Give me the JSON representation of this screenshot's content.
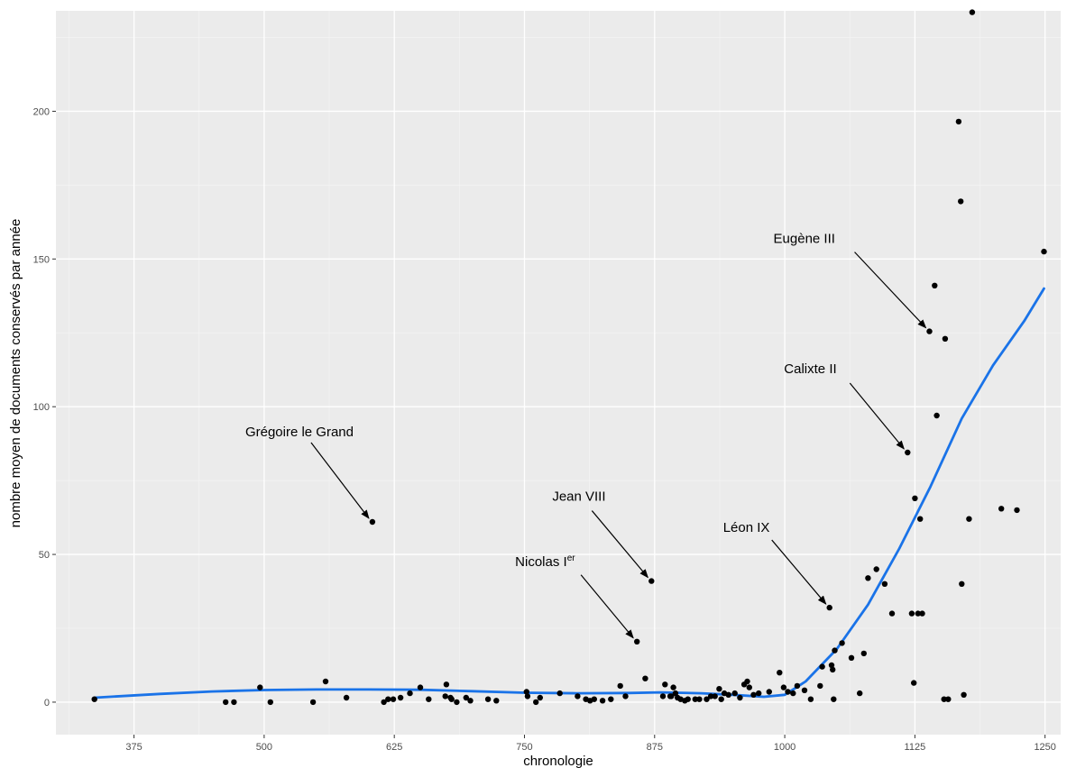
{
  "chart_data": {
    "type": "scatter",
    "title": "",
    "xlabel": "chronologie",
    "ylabel": "nombre moyen de documents conservés par année",
    "xlim": [
      300,
      1265
    ],
    "ylim": [
      -11,
      234
    ],
    "x_ticks": [
      375,
      500,
      625,
      750,
      875,
      1000,
      1125,
      1250
    ],
    "y_ticks": [
      0,
      50,
      100,
      150,
      200
    ],
    "grid": true,
    "legend": "none",
    "colors": {
      "panel": "#ebebeb",
      "grid": "#ffffff",
      "points": "#000000",
      "smooth": "#1a73e8"
    },
    "series": [
      {
        "type": "points",
        "points": [
          [
            337,
            1
          ],
          [
            463,
            0
          ],
          [
            471,
            0
          ],
          [
            496,
            5
          ],
          [
            506,
            0
          ],
          [
            547,
            0
          ],
          [
            559,
            7
          ],
          [
            579,
            1.5
          ],
          [
            604,
            61
          ],
          [
            615,
            0
          ],
          [
            619,
            1
          ],
          [
            624,
            1
          ],
          [
            631,
            1.5
          ],
          [
            640,
            3
          ],
          [
            650,
            5
          ],
          [
            658,
            1
          ],
          [
            674,
            2
          ],
          [
            675,
            6
          ],
          [
            679,
            1.5
          ],
          [
            680,
            1
          ],
          [
            685,
            0
          ],
          [
            694,
            1.5
          ],
          [
            698,
            0.5
          ],
          [
            715,
            1
          ],
          [
            723,
            0.5
          ],
          [
            752,
            3.5
          ],
          [
            753,
            2
          ],
          [
            761,
            0
          ],
          [
            765,
            1.5
          ],
          [
            784,
            3
          ],
          [
            801,
            2
          ],
          [
            809,
            1
          ],
          [
            813,
            0.5
          ],
          [
            817,
            1
          ],
          [
            825,
            0.5
          ],
          [
            833,
            1
          ],
          [
            842,
            5.5
          ],
          [
            847,
            2
          ],
          [
            858,
            20.5
          ],
          [
            866,
            8
          ],
          [
            872,
            41
          ],
          [
            883,
            2
          ],
          [
            885,
            6
          ],
          [
            890,
            2
          ],
          [
            891,
            2
          ],
          [
            893,
            5
          ],
          [
            895,
            3
          ],
          [
            897,
            1.5
          ],
          [
            900,
            1
          ],
          [
            904,
            0.5
          ],
          [
            907,
            1
          ],
          [
            914,
            1
          ],
          [
            918,
            1
          ],
          [
            925,
            1
          ],
          [
            929,
            2
          ],
          [
            933,
            2
          ],
          [
            937,
            4.5
          ],
          [
            939,
            1
          ],
          [
            942,
            3
          ],
          [
            946,
            2.5
          ],
          [
            952,
            3
          ],
          [
            957,
            1.5
          ],
          [
            961,
            6
          ],
          [
            964,
            7
          ],
          [
            966,
            5
          ],
          [
            970,
            2.5
          ],
          [
            975,
            3
          ],
          [
            985,
            3.5
          ],
          [
            995,
            10
          ],
          [
            999,
            5
          ],
          [
            1003,
            3.5
          ],
          [
            1008,
            3
          ],
          [
            1012,
            5.5
          ],
          [
            1019,
            4
          ],
          [
            1025,
            1
          ],
          [
            1034,
            5.5
          ],
          [
            1036,
            12
          ],
          [
            1043,
            32
          ],
          [
            1045,
            12.5
          ],
          [
            1046,
            11
          ],
          [
            1047,
            1
          ],
          [
            1048,
            17.5
          ],
          [
            1055,
            20
          ],
          [
            1064,
            15
          ],
          [
            1072,
            3
          ],
          [
            1076,
            16.5
          ],
          [
            1080,
            42
          ],
          [
            1088,
            45
          ],
          [
            1096,
            40
          ],
          [
            1103,
            30
          ],
          [
            1118,
            84.5
          ],
          [
            1122,
            30
          ],
          [
            1124,
            6.5
          ],
          [
            1125,
            69
          ],
          [
            1128,
            30
          ],
          [
            1130,
            62
          ],
          [
            1132,
            30
          ],
          [
            1139,
            125.5
          ],
          [
            1144,
            141
          ],
          [
            1146,
            97
          ],
          [
            1153,
            1
          ],
          [
            1154,
            123
          ],
          [
            1157,
            1
          ],
          [
            1167,
            196.5
          ],
          [
            1169,
            169.5
          ],
          [
            1170,
            40
          ],
          [
            1172,
            2.5
          ],
          [
            1177,
            62
          ],
          [
            1180,
            233.5
          ],
          [
            1208,
            65.5
          ],
          [
            1223,
            65
          ],
          [
            1249,
            152.5
          ]
        ]
      },
      {
        "type": "smooth",
        "points": [
          [
            337,
            1.5
          ],
          [
            400,
            2.8
          ],
          [
            450,
            3.6
          ],
          [
            500,
            4.1
          ],
          [
            550,
            4.3
          ],
          [
            600,
            4.3
          ],
          [
            650,
            4.2
          ],
          [
            700,
            3.7
          ],
          [
            750,
            3.2
          ],
          [
            800,
            3.0
          ],
          [
            850,
            3.1
          ],
          [
            880,
            3.3
          ],
          [
            920,
            3.0
          ],
          [
            950,
            2.5
          ],
          [
            980,
            1.8
          ],
          [
            1000,
            2.5
          ],
          [
            1020,
            7
          ],
          [
            1050,
            18
          ],
          [
            1080,
            33
          ],
          [
            1110,
            52
          ],
          [
            1140,
            73
          ],
          [
            1170,
            96
          ],
          [
            1200,
            114
          ],
          [
            1230,
            129
          ],
          [
            1249,
            140
          ]
        ]
      }
    ],
    "annotations": [
      {
        "label": "Grégoire le Grand",
        "point": [
          604,
          61
        ]
      },
      {
        "label": "Jean VIII",
        "point": [
          872,
          41
        ]
      },
      {
        "label": "Nicolas I",
        "superscript": "er",
        "point": [
          858,
          20.5
        ]
      },
      {
        "label": "Léon IX",
        "point": [
          1043,
          32
        ]
      },
      {
        "label": "Calixte II",
        "point": [
          1118,
          84.5
        ]
      },
      {
        "label": "Eugène III",
        "point": [
          1139,
          125.5
        ]
      }
    ]
  }
}
